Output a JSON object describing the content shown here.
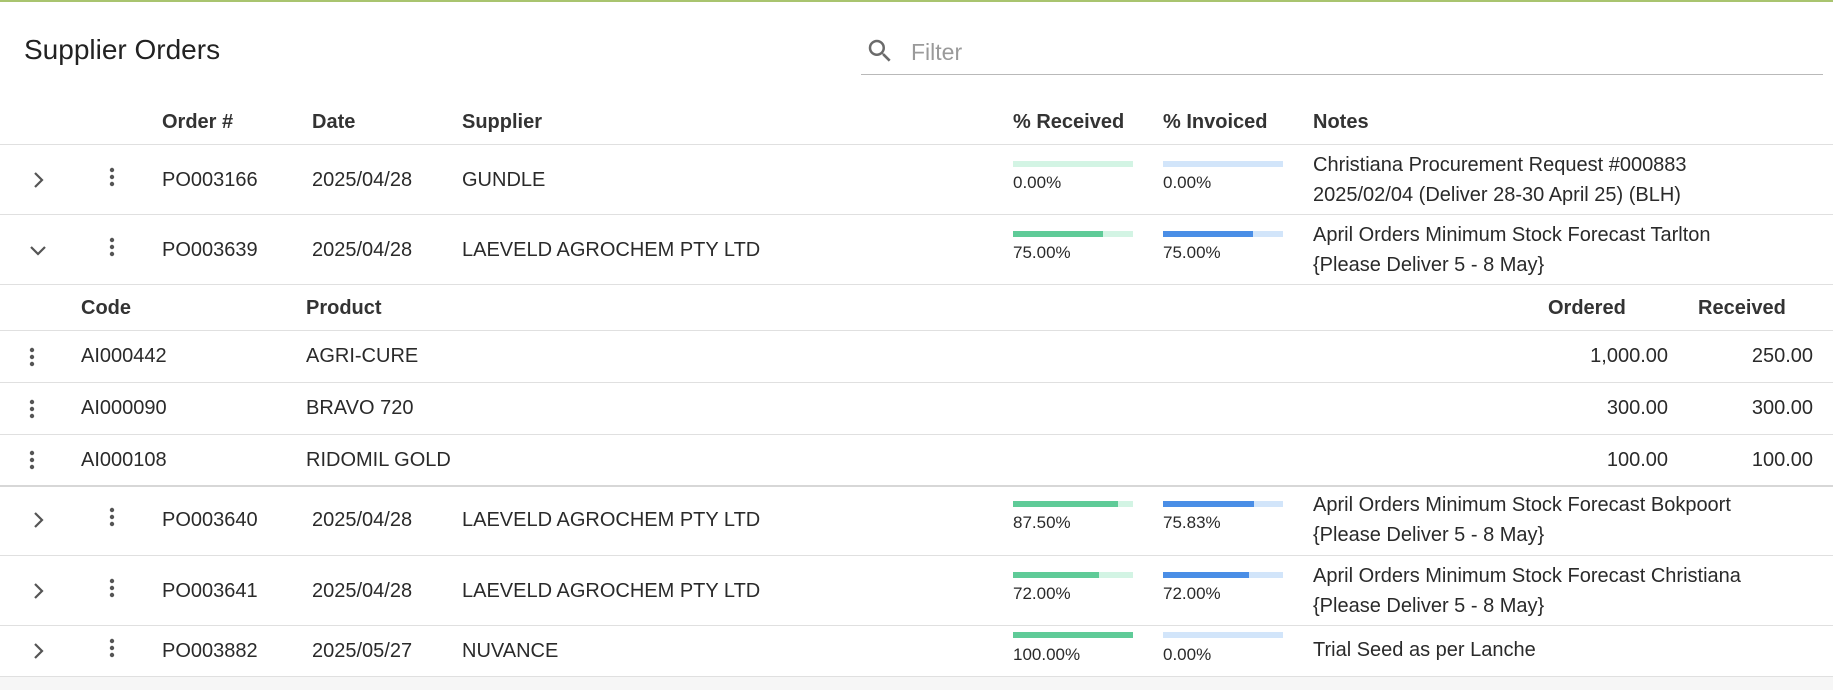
{
  "page": {
    "title": "Supplier Orders",
    "filter_placeholder": "Filter"
  },
  "columns": {
    "order": "Order #",
    "date": "Date",
    "supplier": "Supplier",
    "received": "% Received",
    "invoiced": "% Invoiced",
    "notes": "Notes"
  },
  "colors": {
    "received_fill": "#5fcb98",
    "received_track": "#d3f4e4",
    "invoiced_fill": "#4a8ee6",
    "invoiced_track": "#d2e5fa",
    "top_border": "#a9c46f"
  },
  "orders": [
    {
      "order": "PO003166",
      "date": "2025/04/28",
      "supplier": "GUNDLE",
      "received_pct": 0.0,
      "received_label": "0.00%",
      "invoiced_pct": 0.0,
      "invoiced_label": "0.00%",
      "notes_line1": "Christiana Procurement Request #000883",
      "notes_line2": "2025/02/04 (Deliver 28-30 April 25) (BLH)",
      "expanded": false
    },
    {
      "order": "PO003639",
      "date": "2025/04/28",
      "supplier": "LAEVELD AGROCHEM PTY LTD",
      "received_pct": 75.0,
      "received_label": "75.00%",
      "invoiced_pct": 75.0,
      "invoiced_label": "75.00%",
      "notes_line1": "April Orders Minimum Stock Forecast Tarlton",
      "notes_line2": "{Please Deliver 5 - 8 May}",
      "expanded": true
    },
    {
      "order": "PO003640",
      "date": "2025/04/28",
      "supplier": "LAEVELD AGROCHEM PTY LTD",
      "received_pct": 87.5,
      "received_label": "87.50%",
      "invoiced_pct": 75.83,
      "invoiced_label": "75.83%",
      "notes_line1": "April Orders Minimum Stock Forecast Bokpoort",
      "notes_line2": "{Please Deliver 5 - 8 May}",
      "expanded": false
    },
    {
      "order": "PO003641",
      "date": "2025/04/28",
      "supplier": "LAEVELD AGROCHEM PTY LTD",
      "received_pct": 72.0,
      "received_label": "72.00%",
      "invoiced_pct": 72.0,
      "invoiced_label": "72.00%",
      "notes_line1": "April Orders Minimum Stock Forecast Christiana",
      "notes_line2": "{Please Deliver 5 - 8 May}",
      "expanded": false
    },
    {
      "order": "PO003882",
      "date": "2025/05/27",
      "supplier": "NUVANCE",
      "received_pct": 100.0,
      "received_label": "100.00%",
      "invoiced_pct": 0.0,
      "invoiced_label": "0.00%",
      "notes_line1": "Trial Seed as per Lanche",
      "notes_line2": "",
      "expanded": false
    }
  ],
  "lines": {
    "columns": {
      "code": "Code",
      "product": "Product",
      "ordered": "Ordered",
      "received": "Received"
    },
    "items": [
      {
        "code": "AI000442",
        "product": "AGRI-CURE",
        "ordered": "1,000.00",
        "received": "250.00"
      },
      {
        "code": "AI000090",
        "product": "BRAVO 720",
        "ordered": "300.00",
        "received": "300.00"
      },
      {
        "code": "AI000108",
        "product": "RIDOMIL GOLD",
        "ordered": "100.00",
        "received": "100.00"
      }
    ]
  }
}
